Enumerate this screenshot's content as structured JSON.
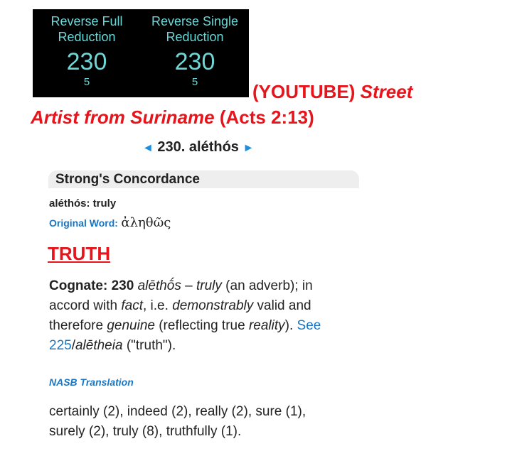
{
  "gematria": {
    "columns": [
      {
        "label": "Reverse Full Reduction",
        "value": "230",
        "sub": "5"
      },
      {
        "label": "Reverse Single Reduction",
        "value": "230",
        "sub": "5"
      }
    ]
  },
  "headline": {
    "parts": [
      "(YOUTUBE)",
      "Street",
      "Artist from Suriname",
      "(Acts  2:13)"
    ]
  },
  "nav": {
    "title": "230. aléthós"
  },
  "section": {
    "title": "Strong's Concordance"
  },
  "entry": {
    "word": "aléthós: truly",
    "original_label": "Original Word:",
    "original_word": "ἀληθῶς"
  },
  "heading": "TRUTH",
  "paragraph": {
    "parts": [
      "Cognate: 230",
      " ",
      "alēthṓs",
      " – ",
      "truly",
      " (an adverb); in accord with ",
      "fact",
      ", i.e. ",
      "demonstrably",
      " valid and therefore ",
      "genuine",
      " (reflecting true ",
      "reality",
      "). ",
      "See 225",
      "/",
      "alētheia",
      " (\"truth\")."
    ]
  },
  "nasb": {
    "title": "NASB Translation",
    "text": "certainly (2), indeed (2), really (2), sure (1), surely (2), truly (8), truthfully (1)."
  }
}
